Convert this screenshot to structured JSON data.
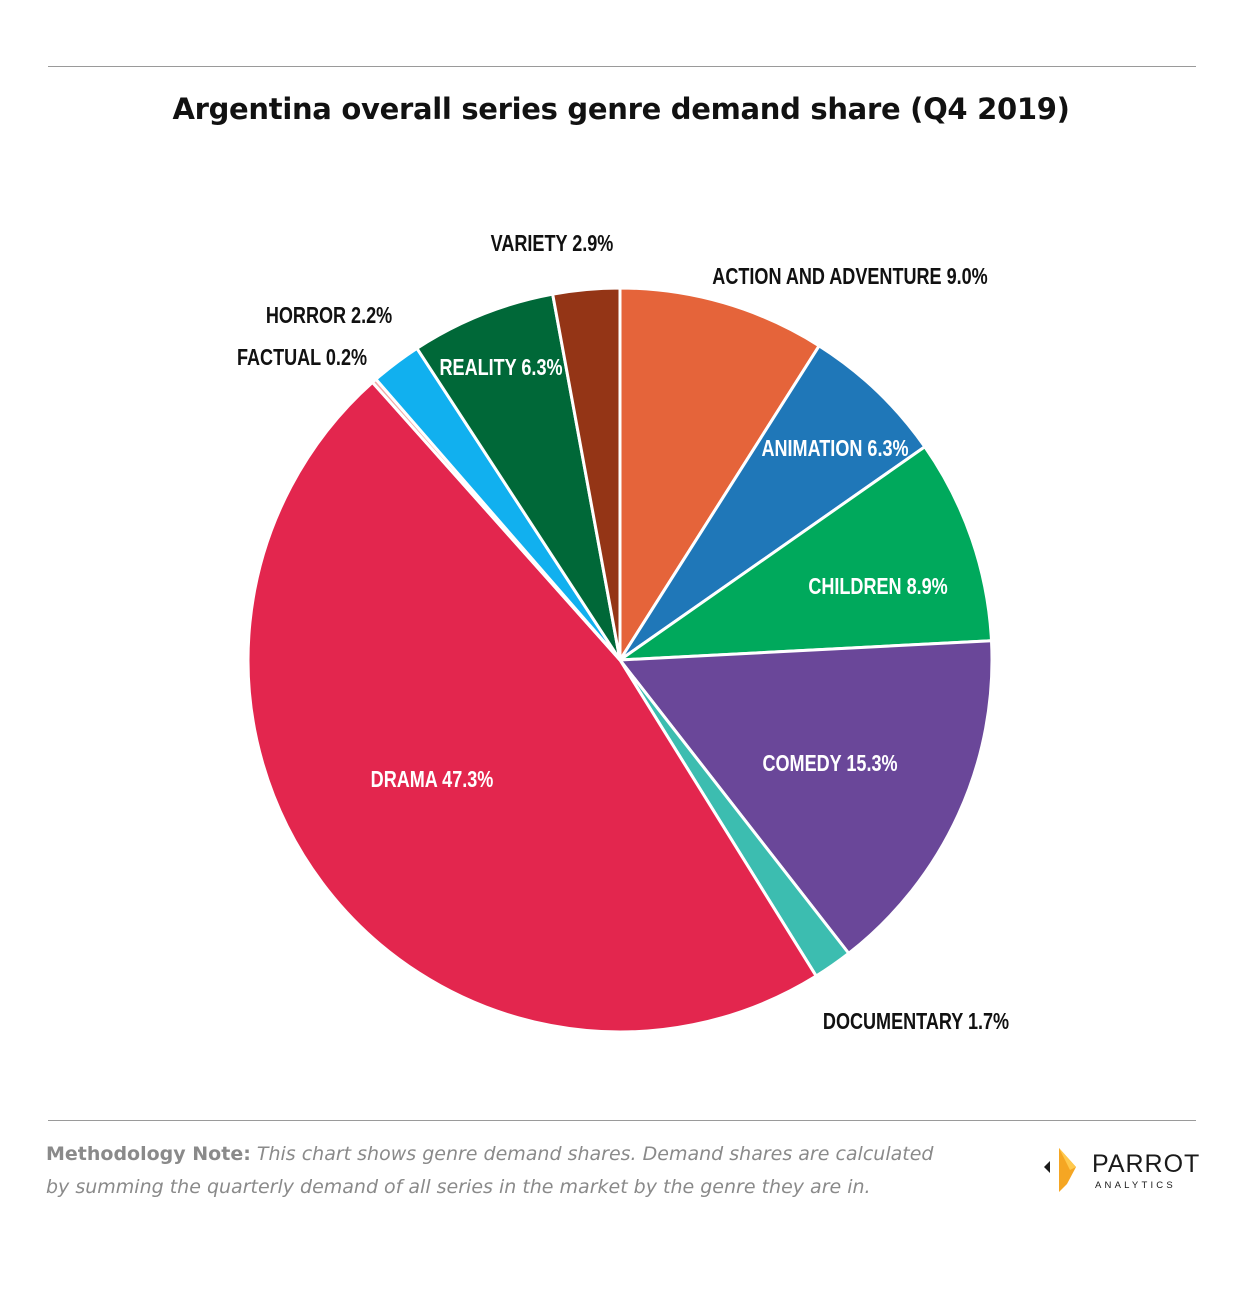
{
  "title": "Argentina overall series genre demand share (Q4 2019)",
  "chart_data": {
    "type": "pie",
    "title": "Argentina overall series genre demand share (Q4 2019)",
    "unit": "%",
    "slices": [
      {
        "label": "ACTION AND ADVENTURE",
        "value": 9.0,
        "display": "ACTION AND ADVENTURE 9.0%",
        "color": "#E5643A",
        "label_color": "#111111"
      },
      {
        "label": "ANIMATION",
        "value": 6.3,
        "display": "ANIMATION 6.3%",
        "color": "#1F77B8",
        "label_color": "#ffffff"
      },
      {
        "label": "CHILDREN",
        "value": 8.9,
        "display": "CHILDREN 8.9%",
        "color": "#00A95C",
        "label_color": "#ffffff"
      },
      {
        "label": "COMEDY",
        "value": 15.3,
        "display": "COMEDY 15.3%",
        "color": "#6A4799",
        "label_color": "#ffffff"
      },
      {
        "label": "DOCUMENTARY",
        "value": 1.7,
        "display": "DOCUMENTARY 1.7%",
        "color": "#3CBDB0",
        "label_color": "#111111"
      },
      {
        "label": "DRAMA",
        "value": 47.3,
        "display": "DRAMA 47.3%",
        "color": "#E3264E",
        "label_color": "#ffffff"
      },
      {
        "label": "FACTUAL",
        "value": 0.2,
        "display": "FACTUAL 0.2%",
        "color": "#F2A8A8",
        "label_color": "#111111"
      },
      {
        "label": "HORROR",
        "value": 2.2,
        "display": "HORROR 2.2%",
        "color": "#11B0EF",
        "label_color": "#111111"
      },
      {
        "label": "REALITY",
        "value": 6.3,
        "display": "REALITY 6.3%",
        "color": "#006838",
        "label_color": "#ffffff"
      },
      {
        "label": "VARIETY",
        "value": 2.9,
        "display": "VARIETY 2.9%",
        "color": "#943516",
        "label_color": "#111111"
      }
    ]
  },
  "note": {
    "title": "Methodology Note:",
    "text": "This chart shows genre demand shares. Demand shares are calculated by summing the quarterly demand of all series in the market by the genre they are in."
  },
  "brand": {
    "name": "PARROT",
    "sub": "ANALYTICS",
    "colors": {
      "accent": "#F5A623",
      "dark": "#1a1a1a"
    }
  }
}
